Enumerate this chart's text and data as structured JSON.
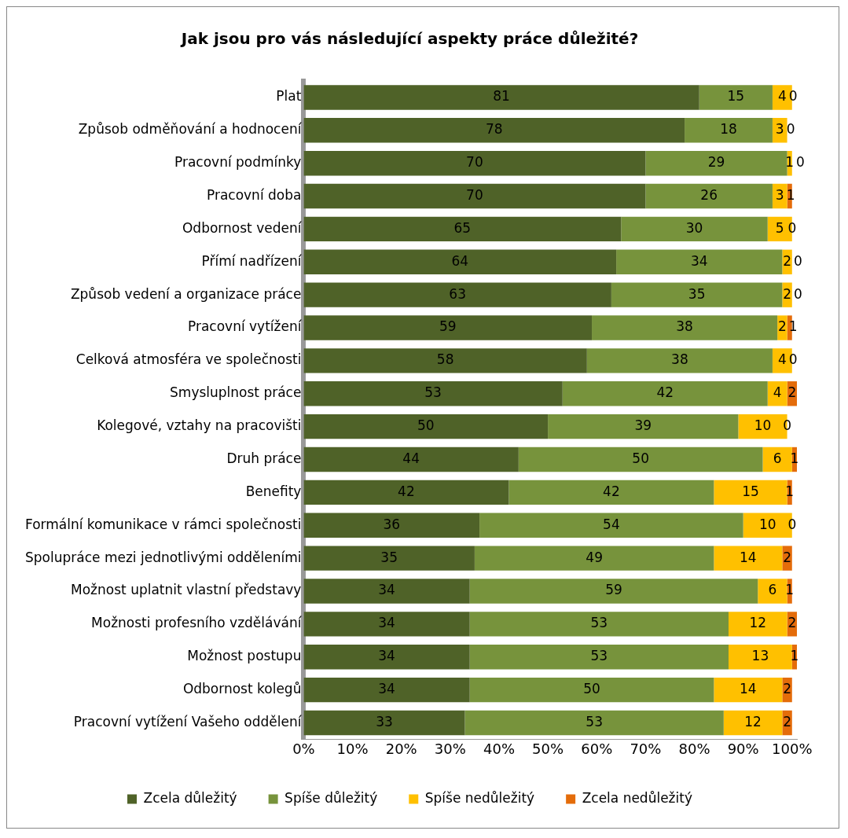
{
  "chart_data": {
    "type": "bar",
    "orientation": "horizontal",
    "stacked": true,
    "title": "Jak jsou pro vás následující aspekty práce důležité?",
    "categories": [
      "Plat",
      "Způsob odměňování a hodnocení",
      "Pracovní podmínky",
      "Pracovní doba",
      "Odbornost vedení",
      "Přímí nadřízení",
      "Způsob vedení a organizace práce",
      "Pracovní vytížení",
      "Celková atmosféra ve společnosti",
      "Smysluplnost práce",
      "Kolegové, vztahy na pracovišti",
      "Druh práce",
      "Benefity",
      "Formální komunikace v rámci společnosti",
      "Spolupráce mezi jednotlivými odděleními",
      "Možnost uplatnit vlastní představy",
      "Možnosti profesního vzdělávání",
      "Možnost postupu",
      "Odbornost kolegů",
      "Pracovní vytížení Vašeho oddělení"
    ],
    "series": [
      {
        "name": "Zcela důležitý",
        "color": "#4f6228",
        "values": [
          81,
          78,
          70,
          70,
          65,
          64,
          63,
          59,
          58,
          53,
          50,
          44,
          42,
          36,
          35,
          34,
          34,
          34,
          34,
          33
        ]
      },
      {
        "name": "Spíše důležitý",
        "color": "#77933c",
        "values": [
          15,
          18,
          29,
          26,
          30,
          34,
          35,
          38,
          38,
          42,
          39,
          50,
          42,
          54,
          49,
          59,
          53,
          53,
          50,
          53
        ]
      },
      {
        "name": "Spíše nedůležitý",
        "color": "#ffc000",
        "values": [
          4,
          3,
          1,
          3,
          5,
          2,
          2,
          2,
          4,
          4,
          10,
          6,
          15,
          10,
          14,
          6,
          12,
          13,
          14,
          12
        ]
      },
      {
        "name": "Zcela nedůležitý",
        "color": "#e46c0a",
        "values": [
          0,
          0,
          0,
          1,
          0,
          0,
          0,
          1,
          0,
          2,
          0,
          1,
          1,
          0,
          2,
          1,
          2,
          1,
          2,
          2
        ]
      }
    ],
    "xlim": [
      0,
      101
    ],
    "xticks": [
      {
        "value": 0,
        "label": "0%"
      },
      {
        "value": 10,
        "label": "10%"
      },
      {
        "value": 20,
        "label": "20%"
      },
      {
        "value": 30,
        "label": "30%"
      },
      {
        "value": 40,
        "label": "40%"
      },
      {
        "value": 50,
        "label": "50%"
      },
      {
        "value": 60,
        "label": "60%"
      },
      {
        "value": 70,
        "label": "70%"
      },
      {
        "value": 80,
        "label": "80%"
      },
      {
        "value": 90,
        "label": "90%"
      },
      {
        "value": 100,
        "label": "100%"
      }
    ],
    "grid": false,
    "legend": "bottom",
    "data_labels": true
  }
}
